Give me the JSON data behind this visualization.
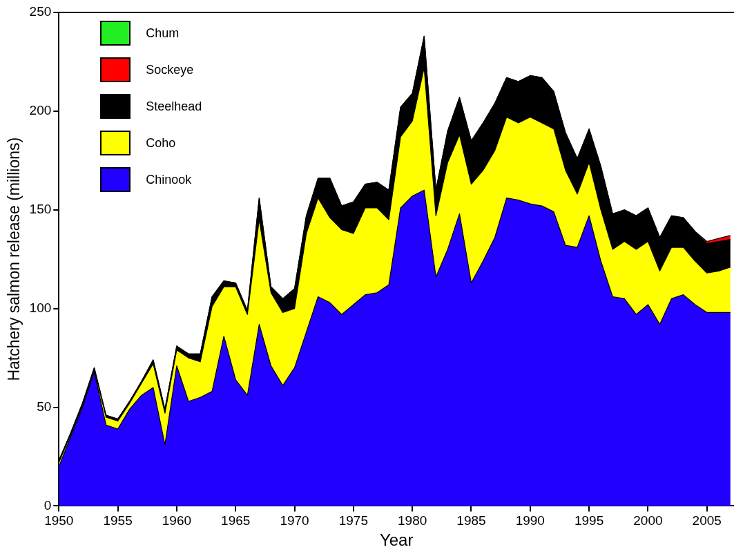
{
  "chart_data": {
    "type": "area",
    "stacked": true,
    "xlabel": "Year",
    "ylabel": "Hatchery salmon release (millions)",
    "x": [
      1950,
      1951,
      1952,
      1953,
      1954,
      1955,
      1956,
      1957,
      1958,
      1959,
      1960,
      1961,
      1962,
      1963,
      1964,
      1965,
      1966,
      1967,
      1968,
      1969,
      1970,
      1971,
      1972,
      1973,
      1974,
      1975,
      1976,
      1977,
      1978,
      1979,
      1980,
      1981,
      1982,
      1983,
      1984,
      1985,
      1986,
      1987,
      1988,
      1989,
      1990,
      1991,
      1992,
      1993,
      1994,
      1995,
      1996,
      1997,
      1998,
      1999,
      2000,
      2001,
      2002,
      2003,
      2004,
      2005,
      2006,
      2007
    ],
    "xlim": [
      1950,
      2007.3
    ],
    "xticks": [
      1950,
      1955,
      1960,
      1965,
      1970,
      1975,
      1980,
      1985,
      1990,
      1995,
      2000,
      2005
    ],
    "ylim": [
      0,
      250
    ],
    "yticks": [
      0,
      50,
      100,
      150,
      200,
      250
    ],
    "grid": false,
    "marker": "none",
    "legend": "top left",
    "series": [
      {
        "name": "Chinook",
        "color": "#2200ff",
        "values": [
          20,
          35,
          50,
          68,
          41,
          39,
          49,
          56,
          60,
          31,
          71,
          53,
          55,
          58,
          86,
          64,
          56,
          92,
          71,
          61,
          70,
          88,
          106,
          103,
          97,
          102,
          107,
          108,
          112,
          151,
          157,
          160,
          116,
          130,
          148,
          113,
          124,
          136,
          156,
          155,
          153,
          152,
          149,
          132,
          131,
          147,
          124,
          106,
          105,
          97,
          102,
          92,
          105,
          107,
          102,
          98,
          98,
          98
        ]
      },
      {
        "name": "Coho",
        "color": "#ffff00",
        "values": [
          2,
          1,
          1,
          1,
          4,
          4,
          3,
          6,
          12,
          16,
          8,
          22,
          18,
          43,
          25,
          47,
          41,
          53,
          37,
          37,
          30,
          50,
          50,
          43,
          43,
          36,
          44,
          43,
          33,
          36,
          38,
          62,
          31,
          44,
          40,
          50,
          46,
          44,
          41,
          39,
          44,
          42,
          42,
          38,
          27,
          27,
          26,
          24,
          29,
          33,
          32,
          27,
          26,
          24,
          22,
          20,
          21,
          23
        ]
      },
      {
        "name": "Steelhead",
        "color": "#000000",
        "values": [
          1,
          1,
          1,
          1,
          1,
          1,
          1,
          1,
          2,
          2,
          2,
          2,
          4,
          5,
          3,
          2,
          2,
          11,
          3,
          7,
          10,
          9,
          10,
          20,
          12,
          16,
          12,
          13,
          15,
          15,
          14,
          16,
          13,
          16,
          19,
          22,
          24,
          24,
          20,
          21,
          21,
          23,
          19,
          19,
          18,
          17,
          22,
          18,
          16,
          17,
          17,
          17,
          16,
          15,
          15,
          15,
          15,
          14
        ]
      },
      {
        "name": "Sockeye",
        "color": "#ff0000",
        "values": [
          0,
          0,
          0,
          0,
          0,
          0,
          0,
          0,
          0,
          0,
          0,
          0,
          0,
          0,
          0,
          0,
          0,
          0,
          0,
          0,
          0,
          0,
          0,
          0,
          0,
          0,
          0,
          0,
          0,
          0,
          0,
          0,
          0,
          0,
          0,
          0,
          0,
          0,
          0,
          0,
          0,
          0,
          0,
          0,
          0,
          0,
          0,
          0,
          0,
          0,
          0,
          0,
          0,
          0,
          0,
          1,
          1.5,
          2
        ]
      },
      {
        "name": "Chum",
        "color": "#22ee22",
        "values": [
          null,
          null,
          null,
          null,
          null,
          null,
          null,
          null,
          null,
          null,
          null,
          null,
          null,
          null,
          null,
          null,
          null,
          null,
          null,
          null,
          null,
          null,
          null,
          null,
          null,
          null,
          null,
          null,
          null,
          null,
          null,
          null,
          null,
          null,
          null,
          null,
          null,
          null,
          null,
          null,
          null,
          null,
          null,
          null,
          null,
          null,
          null,
          null,
          null,
          null,
          null,
          null,
          null,
          null,
          null,
          null,
          null,
          null
        ]
      }
    ]
  }
}
